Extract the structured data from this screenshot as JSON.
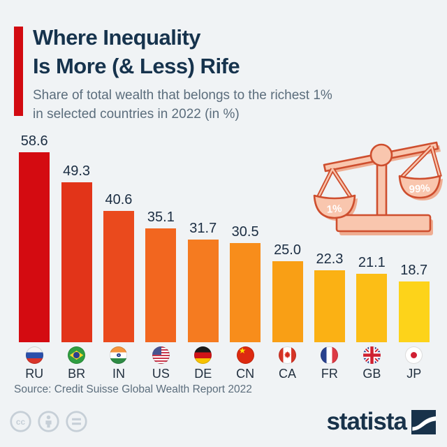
{
  "page": {
    "background": "#f0f3f5"
  },
  "header": {
    "title_line1": "Where Inequality",
    "title_line2": "Is More (& Less) Rife",
    "subtitle_line1": "Share of total wealth that belongs to the richest 1%",
    "subtitle_line2": "in selected countries in 2022 (in %)",
    "accent_color": "#d20a11"
  },
  "chart_data": {
    "type": "bar",
    "title": "Where Inequality Is More (& Less) Rife",
    "subtitle": "Share of total wealth that belongs to the richest 1% in selected countries in 2022 (in %)",
    "categories": [
      "RU",
      "BR",
      "IN",
      "US",
      "DE",
      "CN",
      "CA",
      "FR",
      "GB",
      "JP"
    ],
    "values": [
      58.6,
      49.3,
      40.6,
      35.1,
      31.7,
      30.5,
      25.0,
      22.3,
      21.1,
      18.7
    ],
    "value_labels": [
      "58.6",
      "49.3",
      "40.6",
      "35.1",
      "31.7",
      "30.5",
      "25.0",
      "22.3",
      "21.1",
      "18.7"
    ],
    "bar_colors": [
      "#d40b11",
      "#e23419",
      "#ea4a1d",
      "#f2661f",
      "#f57b20",
      "#f88d1b",
      "#f99f15",
      "#fbb114",
      "#fcbe16",
      "#fdd31a"
    ],
    "flag_icons": [
      "russia-flag",
      "brazil-flag",
      "india-flag",
      "usa-flag",
      "germany-flag",
      "china-flag",
      "canada-flag",
      "france-flag",
      "uk-flag",
      "japan-flag"
    ],
    "ylim": [
      0,
      60
    ],
    "grid": false,
    "legend": "none",
    "value_label_color": "#1b2d42"
  },
  "illustration": {
    "name": "unbalanced-scale",
    "left_pan_label": "1%",
    "right_pan_label": "99%",
    "fill": "#f9c6ae",
    "stroke": "#ce4e2e",
    "shadow": "#efad92"
  },
  "footer": {
    "source": "Source: Credit Suisse Global Wealth Report 2022",
    "license_icons": [
      "cc-icon",
      "attribution-icon",
      "equals-icon"
    ],
    "brand": "statista"
  }
}
